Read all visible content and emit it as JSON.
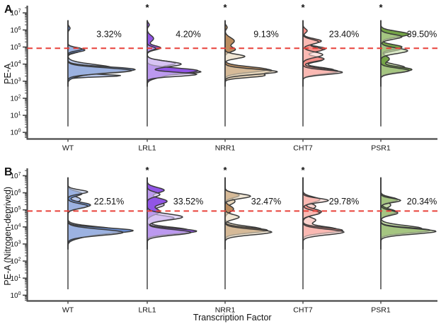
{
  "chart_data": {
    "type": "ridgeline-density",
    "description": "Two stacked panels of half-violin (ridge) flow-cytometry density plots on a log10 y-axis, one ridge per transcription factor, with a red dashed gating threshold and percent-above-threshold labels.",
    "xlabel": "Transcription Factor",
    "categories": [
      "WT",
      "LRL1",
      "NRR1",
      "CHT7",
      "PSR1"
    ],
    "y_scale": "log10",
    "y_tick_exponents": [
      0,
      1,
      2,
      3,
      4,
      5,
      6,
      7
    ],
    "significance_marker": "*",
    "threshold": {
      "exponent": 4.93,
      "color": "#e8413a",
      "style": "dashed"
    },
    "colors": {
      "outline": "#3a3a3a",
      "axis": "#4a4a4a",
      "text": "#111111",
      "background": "#ffffff"
    },
    "panels": [
      {
        "label": "A",
        "ylabel": "PE-A",
        "groups": [
          {
            "name": "WT",
            "percent": "3.32%",
            "significant": false,
            "color_dark": "#6c8ed0",
            "color_light": "#b9c8ec",
            "layers": [
              {
                "shade": "light",
                "opacity": 1.0,
                "components": [
                  [
                    4.75,
                    16,
                    0.1
                  ],
                  [
                    3.78,
                    62,
                    0.2
                  ],
                  [
                    3.32,
                    70,
                    0.07
                  ]
                ]
              },
              {
                "shade": "dark",
                "opacity": 1.0,
                "components": [
                  [
                    6.1,
                    3,
                    0.1
                  ],
                  [
                    4.82,
                    24,
                    0.11
                  ],
                  [
                    3.7,
                    86,
                    0.15
                  ],
                  [
                    3.45,
                    22,
                    0.18
                  ]
                ]
              },
              {
                "shade": "light",
                "opacity": 0.62,
                "components": [
                  [
                    4.88,
                    20,
                    0.1
                  ],
                  [
                    3.62,
                    90,
                    0.16
                  ]
                ]
              }
            ]
          },
          {
            "name": "LRL1",
            "percent": "4.20%",
            "significant": true,
            "color_dark": "#9155e6",
            "color_light": "#d7c3f4",
            "layers": [
              {
                "shade": "light",
                "opacity": 1.0,
                "components": [
                  [
                    4.05,
                    40,
                    0.14
                  ],
                  [
                    3.55,
                    76,
                    0.14
                  ]
                ]
              },
              {
                "shade": "dark",
                "opacity": 1.0,
                "components": [
                  [
                    6.3,
                    3,
                    0.1
                  ],
                  [
                    5.5,
                    9,
                    0.18
                  ],
                  [
                    4.95,
                    19,
                    0.12
                  ],
                  [
                    3.62,
                    70,
                    0.15
                  ],
                  [
                    3.3,
                    18,
                    0.15
                  ]
                ]
              },
              {
                "shade": "light",
                "opacity": 0.62,
                "components": [
                  [
                    4.92,
                    12,
                    0.1
                  ],
                  [
                    4.0,
                    48,
                    0.16
                  ],
                  [
                    3.4,
                    70,
                    0.12
                  ]
                ]
              }
            ]
          },
          {
            "name": "NRR1",
            "percent": "9.13%",
            "significant": true,
            "color_dark": "#bb8d5f",
            "color_light": "#e7d6bb",
            "layers": [
              {
                "shade": "light",
                "opacity": 1.0,
                "components": [
                  [
                    3.62,
                    66,
                    0.18
                  ],
                  [
                    3.3,
                    40,
                    0.1
                  ]
                ]
              },
              {
                "shade": "dark",
                "opacity": 1.0,
                "components": [
                  [
                    6.15,
                    3,
                    0.1
                  ],
                  [
                    5.35,
                    13,
                    0.2
                  ],
                  [
                    4.85,
                    14,
                    0.13
                  ],
                  [
                    3.68,
                    60,
                    0.16
                  ]
                ]
              },
              {
                "shade": "light",
                "opacity": 0.62,
                "components": [
                  [
                    4.45,
                    28,
                    0.12
                  ],
                  [
                    3.55,
                    74,
                    0.15
                  ]
                ]
              }
            ]
          },
          {
            "name": "CHT7",
            "percent": "23.40%",
            "significant": true,
            "color_dark": "#f6908a",
            "color_light": "#fbd2cd",
            "layers": [
              {
                "shade": "light",
                "opacity": 1.0,
                "components": [
                  [
                    4.9,
                    32,
                    0.14
                  ],
                  [
                    4.25,
                    28,
                    0.13
                  ],
                  [
                    3.65,
                    44,
                    0.15
                  ]
                ]
              },
              {
                "shade": "dark",
                "opacity": 1.0,
                "components": [
                  [
                    5.95,
                    6,
                    0.12
                  ],
                  [
                    5.35,
                    26,
                    0.14
                  ],
                  [
                    4.85,
                    28,
                    0.14
                  ],
                  [
                    4.3,
                    30,
                    0.14
                  ],
                  [
                    3.58,
                    50,
                    0.15
                  ]
                ]
              },
              {
                "shade": "light",
                "opacity": 0.62,
                "components": [
                  [
                    5.3,
                    22,
                    0.14
                  ],
                  [
                    4.55,
                    28,
                    0.16
                  ],
                  [
                    3.52,
                    56,
                    0.13
                  ]
                ]
              }
            ]
          },
          {
            "name": "PSR1",
            "percent": "39.50%",
            "significant": true,
            "color_dark": "#74a347",
            "color_light": "#c3daa5",
            "layers": [
              {
                "shade": "light",
                "opacity": 1.0,
                "components": [
                  [
                    5.88,
                    22,
                    0.11
                  ],
                  [
                    4.9,
                    28,
                    0.14
                  ],
                  [
                    3.8,
                    34,
                    0.18
                  ]
                ]
              },
              {
                "shade": "dark",
                "opacity": 1.0,
                "components": [
                  [
                    5.75,
                    40,
                    0.16
                  ],
                  [
                    5.0,
                    30,
                    0.14
                  ],
                  [
                    4.3,
                    12,
                    0.18
                  ],
                  [
                    3.68,
                    44,
                    0.15
                  ]
                ]
              },
              {
                "shade": "light",
                "opacity": 0.62,
                "components": [
                  [
                    5.6,
                    30,
                    0.14
                  ],
                  [
                    4.78,
                    38,
                    0.16
                  ],
                  [
                    3.62,
                    40,
                    0.14
                  ]
                ]
              }
            ]
          }
        ]
      },
      {
        "label": "B",
        "ylabel": "PE-A (Nitrogen-deprived)",
        "groups": [
          {
            "name": "WT",
            "percent": "22.51%",
            "significant": false,
            "color_dark": "#6c8ed0",
            "color_light": "#b9c8ec",
            "layers": [
              {
                "shade": "light",
                "opacity": 1.0,
                "components": [
                  [
                    5.6,
                    18,
                    0.18
                  ],
                  [
                    3.85,
                    66,
                    0.17
                  ]
                ]
              },
              {
                "shade": "dark",
                "opacity": 1.0,
                "components": [
                  [
                    5.95,
                    20,
                    0.14
                  ],
                  [
                    5.28,
                    32,
                    0.16
                  ],
                  [
                    3.8,
                    86,
                    0.15
                  ],
                  [
                    3.5,
                    24,
                    0.18
                  ]
                ]
              },
              {
                "shade": "light",
                "opacity": 0.62,
                "components": [
                  [
                    6.05,
                    28,
                    0.12
                  ],
                  [
                    5.22,
                    28,
                    0.14
                  ],
                  [
                    3.68,
                    78,
                    0.18
                  ]
                ]
              }
            ]
          },
          {
            "name": "LRL1",
            "percent": "33.52%",
            "significant": true,
            "color_dark": "#9155e6",
            "color_light": "#d7c3f4",
            "layers": [
              {
                "shade": "light",
                "opacity": 1.0,
                "components": [
                  [
                    5.3,
                    24,
                    0.18
                  ],
                  [
                    4.52,
                    38,
                    0.14
                  ],
                  [
                    3.82,
                    58,
                    0.16
                  ]
                ]
              },
              {
                "shade": "dark",
                "opacity": 1.0,
                "components": [
                  [
                    6.15,
                    24,
                    0.16
                  ],
                  [
                    5.5,
                    28,
                    0.18
                  ],
                  [
                    4.9,
                    18,
                    0.18
                  ],
                  [
                    3.75,
                    70,
                    0.15
                  ]
                ]
              },
              {
                "shade": "light",
                "opacity": 0.62,
                "components": [
                  [
                    5.9,
                    18,
                    0.14
                  ],
                  [
                    4.58,
                    50,
                    0.18
                  ],
                  [
                    3.68,
                    62,
                    0.16
                  ]
                ]
              }
            ]
          },
          {
            "name": "NRR1",
            "percent": "32.47%",
            "significant": true,
            "color_dark": "#bb8d5f",
            "color_light": "#e7d6bb",
            "layers": [
              {
                "shade": "light",
                "opacity": 1.0,
                "components": [
                  [
                    5.5,
                    14,
                    0.18
                  ],
                  [
                    3.86,
                    52,
                    0.18
                  ]
                ]
              },
              {
                "shade": "dark",
                "opacity": 1.0,
                "components": [
                  [
                    5.85,
                    20,
                    0.14
                  ],
                  [
                    5.05,
                    12,
                    0.18
                  ],
                  [
                    3.8,
                    60,
                    0.15
                  ]
                ]
              },
              {
                "shade": "light",
                "opacity": 0.62,
                "components": [
                  [
                    5.8,
                    36,
                    0.14
                  ],
                  [
                    4.58,
                    20,
                    0.14
                  ],
                  [
                    3.7,
                    66,
                    0.16
                  ]
                ]
              }
            ]
          },
          {
            "name": "CHT7",
            "percent": "29.78%",
            "significant": true,
            "color_dark": "#f6908a",
            "color_light": "#fbd2cd",
            "layers": [
              {
                "shade": "light",
                "opacity": 1.0,
                "components": [
                  [
                    5.2,
                    18,
                    0.18
                  ],
                  [
                    4.4,
                    18,
                    0.16
                  ],
                  [
                    3.86,
                    48,
                    0.16
                  ]
                ]
              },
              {
                "shade": "dark",
                "opacity": 1.0,
                "components": [
                  [
                    5.6,
                    24,
                    0.16
                  ],
                  [
                    4.88,
                    26,
                    0.18
                  ],
                  [
                    3.8,
                    56,
                    0.15
                  ]
                ]
              },
              {
                "shade": "light",
                "opacity": 0.62,
                "components": [
                  [
                    5.55,
                    36,
                    0.13
                  ],
                  [
                    4.82,
                    24,
                    0.14
                  ],
                  [
                    3.7,
                    58,
                    0.16
                  ]
                ]
              }
            ]
          },
          {
            "name": "PSR1",
            "percent": "20.34%",
            "significant": false,
            "color_dark": "#74a347",
            "color_light": "#c3daa5",
            "layers": [
              {
                "shade": "light",
                "opacity": 1.0,
                "components": [
                  [
                    5.28,
                    14,
                    0.18
                  ],
                  [
                    3.9,
                    58,
                    0.18
                  ]
                ]
              },
              {
                "shade": "dark",
                "opacity": 1.0,
                "components": [
                  [
                    5.6,
                    24,
                    0.14
                  ],
                  [
                    4.88,
                    22,
                    0.16
                  ],
                  [
                    3.8,
                    70,
                    0.15
                  ]
                ]
              },
              {
                "shade": "light",
                "opacity": 0.62,
                "components": [
                  [
                    5.55,
                    28,
                    0.12
                  ],
                  [
                    4.82,
                    24,
                    0.14
                  ],
                  [
                    3.74,
                    78,
                    0.16
                  ]
                ]
              }
            ]
          }
        ]
      }
    ]
  }
}
